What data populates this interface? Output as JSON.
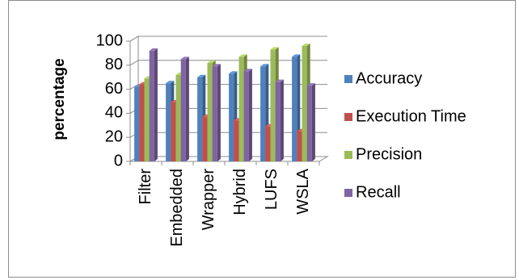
{
  "chart_data": {
    "type": "bar",
    "title": "",
    "xlabel": "",
    "ylabel": "percentage",
    "ylim": [
      0,
      100
    ],
    "yticks": [
      0,
      20,
      40,
      60,
      80,
      100
    ],
    "grid": true,
    "legend_position": "right",
    "categories": [
      "Filter",
      "Embedded",
      "Wrapper",
      "Hybrid",
      "LUFS",
      "WSLA"
    ],
    "series": [
      {
        "name": "Accuracy",
        "color": "#4f81bd",
        "values": [
          62,
          65,
          70,
          73,
          79,
          87
        ]
      },
      {
        "name": "Execution Time",
        "color": "#c0504d",
        "values": [
          64,
          49,
          37,
          34,
          29,
          25
        ]
      },
      {
        "name": "Precision",
        "color": "#9bbb59",
        "values": [
          69,
          72,
          82,
          87,
          93,
          96
        ]
      },
      {
        "name": "Recall",
        "color": "#8064a2",
        "values": [
          92,
          85,
          79,
          75,
          66,
          63
        ]
      }
    ]
  }
}
